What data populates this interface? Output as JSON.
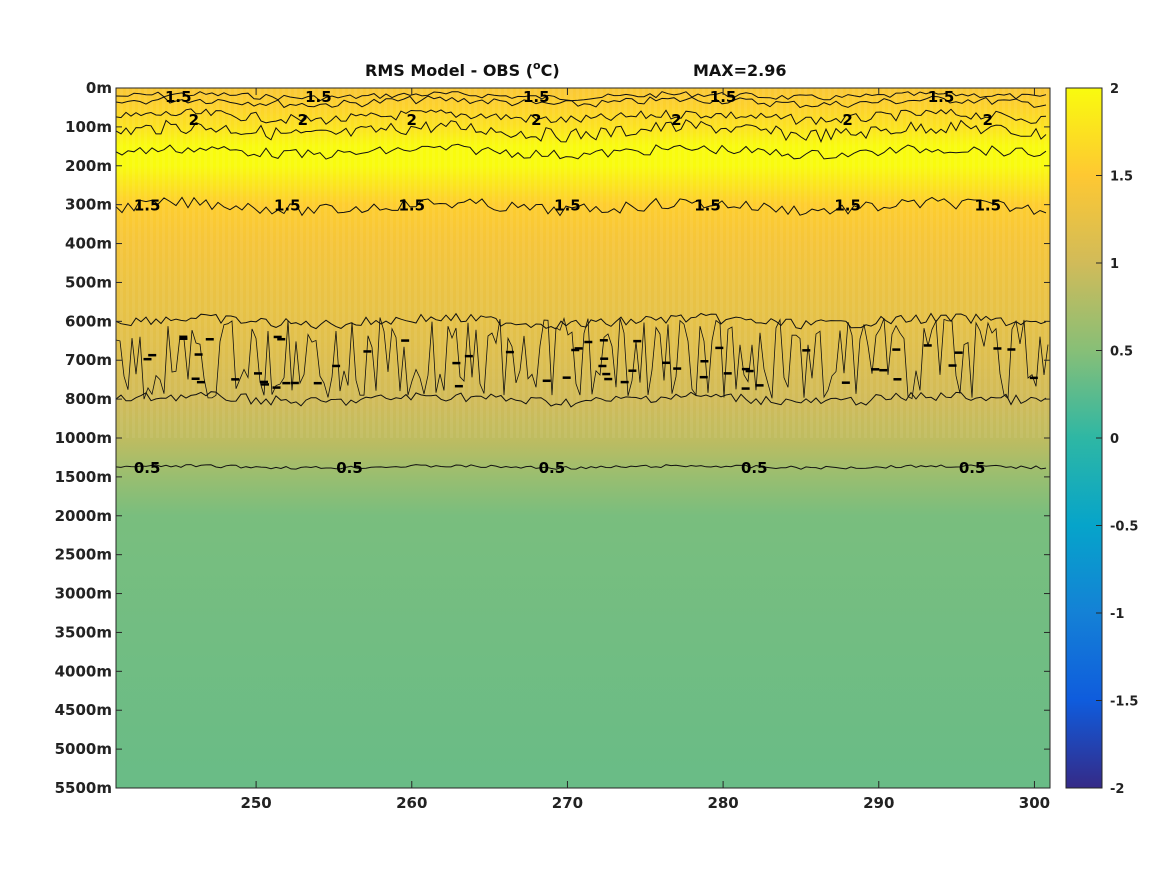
{
  "chart_data": {
    "type": "heatmap",
    "title_left": "RMS Model - OBS (",
    "title_unit_sup": "o",
    "title_unit": "C)",
    "title_right": "MAX=2.96",
    "x_ticks": [
      250,
      260,
      270,
      280,
      290,
      300
    ],
    "xlim": [
      241,
      301
    ],
    "y_tick_labels": [
      "0m",
      "100m",
      "200m",
      "300m",
      "400m",
      "500m",
      "600m",
      "700m",
      "800m",
      "1000m",
      "1500m",
      "2000m",
      "2500m",
      "3000m",
      "3500m",
      "4000m",
      "4500m",
      "5000m",
      "5500m"
    ],
    "colorbar": {
      "ticks": [
        "2",
        "1.5",
        "1",
        "0.5",
        "0",
        "-0.5",
        "-1",
        "-1.5",
        "-2"
      ],
      "range": [
        -2,
        2
      ],
      "colormap": "parula",
      "colors": [
        "#352a87",
        "#0f5cdd",
        "#1481d6",
        "#06a4ca",
        "#2eb7a4",
        "#87bf77",
        "#d1bb59",
        "#fec832",
        "#f9fb0e"
      ]
    },
    "contour_levels": [
      0.5,
      1,
      1.5,
      2
    ],
    "depth_profile_index": [
      0,
      0.5,
      1,
      1.5,
      2,
      3,
      4,
      5,
      6,
      7,
      8,
      9,
      10,
      11,
      14,
      18
    ],
    "depth_profile_rms": [
      1.45,
      1.6,
      1.75,
      2.0,
      2.0,
      1.55,
      1.4,
      1.3,
      1.22,
      1.12,
      1.0,
      0.88,
      0.62,
      0.42,
      0.38,
      0.33
    ],
    "contour_label_rows": [
      {
        "level": "1.5",
        "x": [
          245,
          254,
          268,
          280,
          294
        ]
      },
      {
        "level": "2",
        "x": [
          246,
          253,
          260,
          268,
          277,
          288,
          297
        ]
      },
      {
        "level": "1.5",
        "x": [
          243,
          252,
          260,
          270,
          279,
          288,
          297
        ]
      },
      {
        "level": "0.5",
        "x": [
          243,
          256,
          269,
          282,
          296
        ]
      }
    ]
  }
}
